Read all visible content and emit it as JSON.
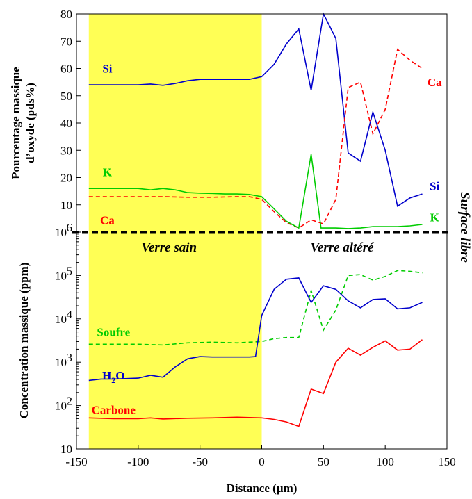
{
  "chart_data": [
    {
      "type": "line",
      "ylabel_lines": [
        "Pourcentage massique",
        "d’oxyde (pds%)"
      ],
      "ylim": [
        0,
        80
      ],
      "yticks": [
        {
          "v": 10,
          "t": "10"
        },
        {
          "v": 20,
          "t": "20"
        },
        {
          "v": 30,
          "t": "30"
        },
        {
          "v": 40,
          "t": "40"
        },
        {
          "v": 50,
          "t": "50"
        },
        {
          "v": 60,
          "t": "60"
        },
        {
          "v": 70,
          "t": "70"
        },
        {
          "v": 80,
          "t": "80"
        }
      ],
      "series": [
        {
          "key": "si",
          "color": "#0000cc",
          "dash": false,
          "x": [
            -140,
            -120,
            -100,
            -90,
            -80,
            -70,
            -60,
            -50,
            -40,
            -30,
            -20,
            -10,
            0,
            10,
            20,
            30,
            40,
            50,
            60,
            70,
            80,
            90,
            100,
            110,
            120,
            130
          ],
          "y": [
            54,
            54,
            54,
            54.3,
            53.8,
            54.5,
            55.5,
            56,
            56,
            56,
            56,
            56,
            57,
            61.5,
            69,
            74.5,
            52,
            80,
            71,
            29,
            26,
            44,
            30,
            9.5,
            12.5,
            14
          ]
        },
        {
          "key": "ca",
          "color": "#ff0000",
          "dash": true,
          "x": [
            -140,
            -120,
            -100,
            -80,
            -60,
            -40,
            -20,
            -10,
            0,
            10,
            20,
            30,
            40,
            50,
            60,
            70,
            80,
            90,
            100,
            110,
            120,
            130
          ],
          "y": [
            13,
            13,
            13,
            13,
            12.8,
            12.8,
            13,
            13,
            12,
            7.5,
            3.5,
            1.5,
            4.5,
            3.0,
            12,
            53,
            55,
            36,
            45,
            67,
            63,
            60
          ]
        },
        {
          "key": "k",
          "color": "#00cc00",
          "dash": false,
          "x": [
            -140,
            -120,
            -100,
            -90,
            -80,
            -70,
            -60,
            -50,
            -40,
            -30,
            -20,
            -10,
            0,
            10,
            20,
            30,
            40,
            48,
            60,
            70,
            80,
            90,
            100,
            110,
            120,
            130
          ],
          "y": [
            16,
            16,
            16,
            15.5,
            16,
            15.5,
            14.5,
            14.3,
            14.2,
            14,
            14,
            13.8,
            13,
            8.5,
            4,
            1.5,
            28.5,
            1.5,
            1.5,
            1.3,
            1.5,
            2,
            2,
            2,
            2.3,
            2.8
          ]
        }
      ],
      "series_labels": [
        {
          "text": "Si",
          "color": "#0000cc",
          "x": -125,
          "y": 60
        },
        {
          "text": "Ca",
          "color": "#ff0000",
          "x": 140,
          "y": 55
        },
        {
          "text": "K",
          "color": "#00cc00",
          "x": -125,
          "y": 22
        },
        {
          "text": "Ca",
          "color": "#ff0000",
          "x": -125,
          "y": 4.5
        },
        {
          "text": "Si",
          "color": "#0000cc",
          "x": 140,
          "y": 17
        },
        {
          "text": "K",
          "color": "#00cc00",
          "x": 140,
          "y": 5.5
        }
      ]
    },
    {
      "type": "line",
      "yscale": "log",
      "ylabel": "Concentration massique (ppm)",
      "ylim": [
        10,
        1000000
      ],
      "yticks": [
        {
          "v": 10,
          "t": "10",
          "sup": ""
        },
        {
          "v": 100,
          "t": "10",
          "sup": "2"
        },
        {
          "v": 1000,
          "t": "10",
          "sup": "3"
        },
        {
          "v": 10000,
          "t": "10",
          "sup": "4"
        },
        {
          "v": 100000,
          "t": "10",
          "sup": "5"
        },
        {
          "v": 1000000,
          "t": "10",
          "sup": "6"
        }
      ],
      "series": [
        {
          "key": "soufre",
          "color": "#00cc00",
          "dash": true,
          "x": [
            -140,
            -120,
            -100,
            -80,
            -60,
            -40,
            -20,
            -10,
            0,
            10,
            20,
            30,
            40,
            50,
            60,
            70,
            80,
            90,
            100,
            110,
            120,
            130
          ],
          "y": [
            2600,
            2600,
            2600,
            2500,
            2800,
            2900,
            2800,
            2900,
            3000,
            3500,
            3700,
            3700,
            45000,
            5500,
            16000,
            100000,
            105000,
            78000,
            95000,
            130000,
            125000,
            115000
          ]
        },
        {
          "key": "h2o",
          "color": "#0000cc",
          "dash": false,
          "x": [
            -140,
            -130,
            -120,
            -100,
            -90,
            -80,
            -70,
            -60,
            -50,
            -40,
            -30,
            -20,
            -10,
            -5,
            0,
            10,
            20,
            30,
            40,
            50,
            60,
            70,
            80,
            90,
            100,
            110,
            120,
            130
          ],
          "y": [
            380,
            410,
            410,
            430,
            500,
            450,
            780,
            1200,
            1350,
            1320,
            1320,
            1320,
            1320,
            1350,
            12000,
            48000,
            82000,
            88000,
            24000,
            58000,
            48000,
            26000,
            18000,
            28000,
            29000,
            17000,
            18000,
            24000
          ]
        },
        {
          "key": "carbone",
          "color": "#ff0000",
          "dash": false,
          "x": [
            -140,
            -120,
            -100,
            -90,
            -80,
            -60,
            -40,
            -20,
            -10,
            0,
            10,
            20,
            30,
            40,
            50,
            60,
            70,
            80,
            90,
            100,
            110,
            120,
            130
          ],
          "y": [
            52,
            50,
            50,
            52,
            49,
            51,
            52,
            54,
            53,
            52,
            48,
            42,
            33,
            240,
            190,
            1000,
            2100,
            1450,
            2200,
            3100,
            1900,
            2000,
            3300
          ]
        }
      ],
      "series_labels": [
        {
          "text": "Soufre",
          "color": "#00cc00",
          "x": -120,
          "y": 5000
        },
        {
          "text": "Carbone",
          "color": "#ff0000",
          "x": -120,
          "y": 80
        }
      ],
      "h2o_label": {
        "base": "H",
        "sub": "2",
        "rest": "O",
        "color": "#0000cc",
        "x": -120,
        "y": 500
      },
      "xlabel": "Distance (µm)",
      "xlim": [
        -150,
        150
      ],
      "xticks": [
        -150,
        -100,
        -50,
        0,
        50,
        100,
        150
      ]
    }
  ],
  "regions": {
    "sain_label": "Verre sain",
    "altere_label": "Verre altéré",
    "surface_label": "Surface libre",
    "sain_color": "#ffff55",
    "sain_range": [
      -140,
      0
    ]
  }
}
